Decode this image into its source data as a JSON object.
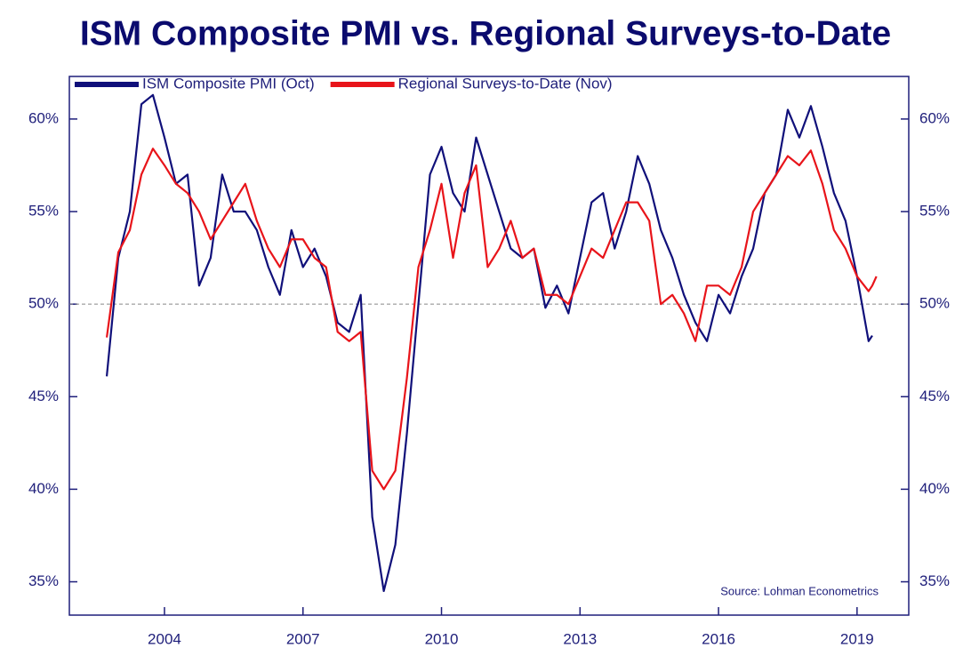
{
  "chart_data": {
    "type": "line",
    "title": "ISM Composite PMI vs. Regional Surveys-to-Date",
    "annotation": "Source: Lohman Econometrics",
    "x": [
      2002.75,
      2003.0,
      2003.25,
      2003.5,
      2003.75,
      2004.0,
      2004.25,
      2004.5,
      2004.75,
      2005.0,
      2005.25,
      2005.5,
      2005.75,
      2006.0,
      2006.25,
      2006.5,
      2006.75,
      2007.0,
      2007.25,
      2007.5,
      2007.75,
      2008.0,
      2008.25,
      2008.5,
      2008.75,
      2009.0,
      2009.25,
      2009.5,
      2009.75,
      2010.0,
      2010.25,
      2010.5,
      2010.75,
      2011.0,
      2011.25,
      2011.5,
      2011.75,
      2012.0,
      2012.25,
      2012.5,
      2012.75,
      2013.0,
      2013.25,
      2013.5,
      2013.75,
      2014.0,
      2014.25,
      2014.5,
      2014.75,
      2015.0,
      2015.25,
      2015.5,
      2015.75,
      2016.0,
      2016.25,
      2016.5,
      2016.75,
      2017.0,
      2017.25,
      2017.5,
      2017.75,
      2018.0,
      2018.25,
      2018.5,
      2018.75,
      2019.0,
      2019.25,
      2019.33,
      2019.42
    ],
    "series": [
      {
        "name": "ISM Composite PMI (Oct)",
        "color": "#10107a",
        "values": [
          46.1,
          52.5,
          55,
          60.8,
          61.3,
          59,
          56.5,
          57,
          51,
          52.5,
          57,
          55,
          55,
          54,
          52,
          50.5,
          54,
          52,
          53,
          51.5,
          49,
          48.5,
          50.5,
          38.5,
          34.5,
          37,
          43,
          50,
          57,
          58.5,
          56,
          55,
          59,
          57,
          55,
          53,
          52.5,
          53,
          49.8,
          51,
          49.5,
          52.5,
          55.5,
          56,
          53,
          55,
          58,
          56.5,
          54,
          52.5,
          50.5,
          49,
          48,
          50.5,
          49.5,
          51.5,
          53,
          56,
          57,
          60.5,
          59,
          60.7,
          58.5,
          56,
          54.5,
          51.5,
          48,
          48.3,
          null
        ]
      },
      {
        "name": "Regional Surveys-to-Date (Nov)",
        "color": "#e8141a",
        "values": [
          48.2,
          52.8,
          54,
          57,
          58.4,
          57.5,
          56.5,
          56,
          55,
          53.5,
          54.5,
          55.5,
          56.5,
          54.5,
          53,
          52,
          53.5,
          53.5,
          52.5,
          52,
          48.5,
          48,
          48.5,
          41,
          40,
          41,
          46,
          52,
          54,
          56.5,
          52.5,
          56,
          57.5,
          52,
          53,
          54.5,
          52.5,
          53,
          50.5,
          50.5,
          50,
          51.5,
          53,
          52.5,
          54,
          55.5,
          55.5,
          54.5,
          50,
          50.5,
          49.5,
          48,
          51,
          51,
          50.5,
          52,
          55,
          56,
          57,
          58,
          57.5,
          58.3,
          56.5,
          54,
          53,
          51.5,
          50.7,
          51.0,
          51.5
        ]
      }
    ],
    "xlim": [
      2001.94,
      2020.12
    ],
    "xticks": [
      2004,
      2007,
      2010,
      2013,
      2016,
      2019
    ],
    "ylim": [
      33.2,
      62.3
    ],
    "yticks": [
      {
        "value": 35,
        "label": "35%"
      },
      {
        "value": 40,
        "label": "40%"
      },
      {
        "value": 45,
        "label": "45%"
      },
      {
        "value": 50,
        "label": "50%"
      },
      {
        "value": 55,
        "label": "55%"
      },
      {
        "value": 60,
        "label": "60%"
      }
    ],
    "reference_line": 50,
    "legend": "top-left"
  }
}
